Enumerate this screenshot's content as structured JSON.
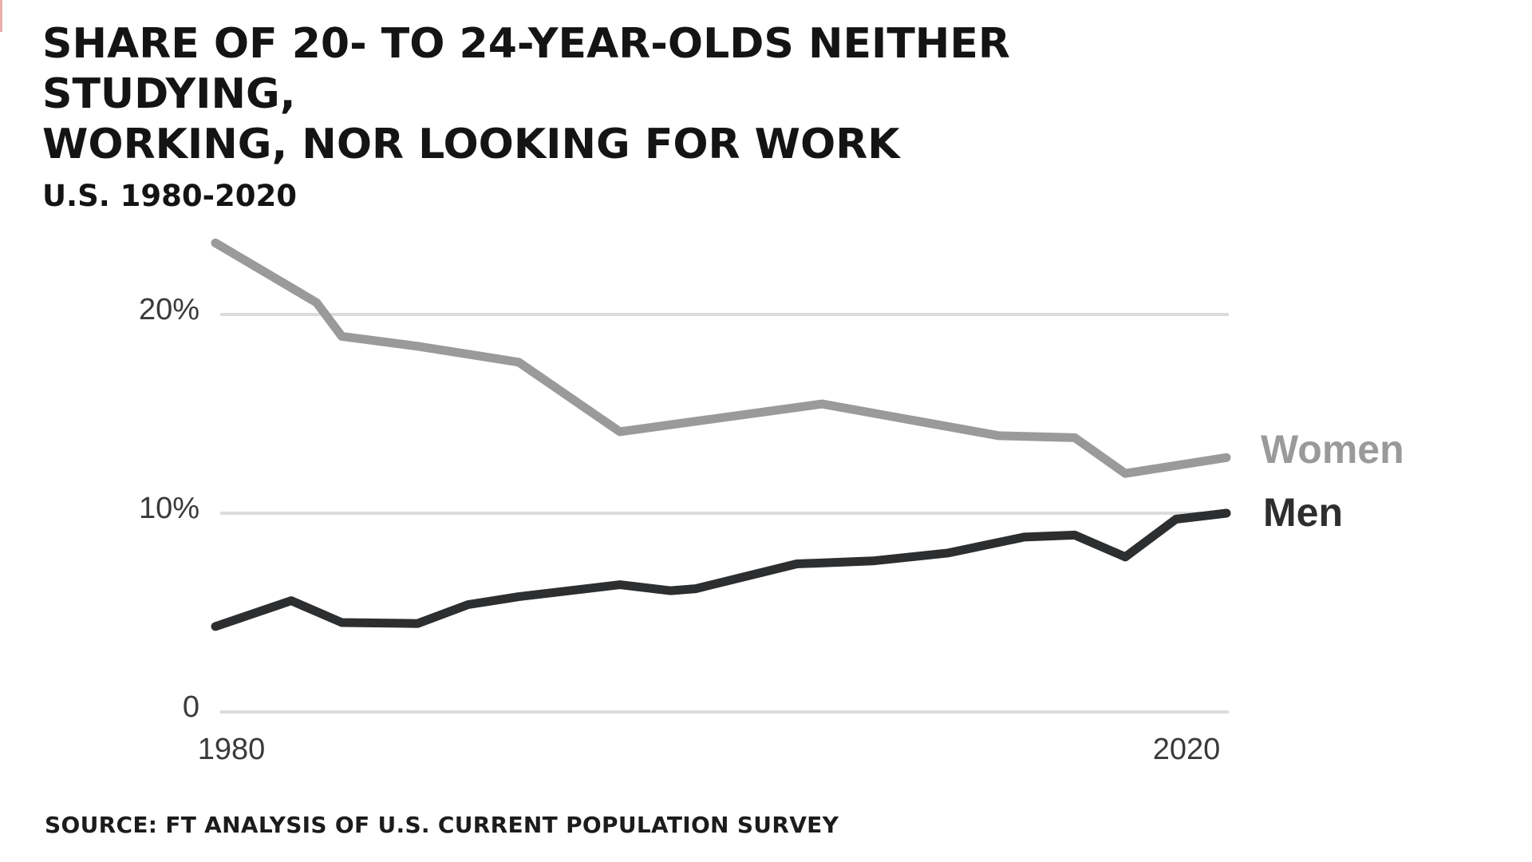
{
  "header": {
    "title_line1": "SHARE OF 20- TO 24-YEAR-OLDS NEITHER STUDYING,",
    "title_line2": "WORKING, NOR LOOKING FOR WORK",
    "subtitle": "U.S. 1980-2020"
  },
  "footer": {
    "source": "SOURCE: FT ANALYSIS OF U.S. CURRENT POPULATION SURVEY"
  },
  "chart_data": {
    "type": "line",
    "title": "SHARE OF 20- TO 24-YEAR-OLDS NEITHER STUDYING, WORKING, NOR LOOKING FOR WORK",
    "subtitle": "U.S. 1980-2020",
    "xlabel": "",
    "ylabel": "",
    "x_range": [
      1980,
      2020
    ],
    "ylim": [
      0,
      25
    ],
    "grid": "horizontal",
    "grid_color": "#dcdcdc",
    "background_color": "#ffffff",
    "legend_position": "right-of-line-ends",
    "yticks": [
      {
        "value": 20,
        "label": "20%"
      },
      {
        "value": 10,
        "label": "10%"
      },
      {
        "value": 0,
        "label": "0"
      }
    ],
    "xticks": [
      {
        "value": 1980,
        "label": "1980"
      },
      {
        "value": 2020,
        "label": "2020"
      }
    ],
    "series": [
      {
        "name": "Women",
        "color": "#9a9a9a",
        "points": [
          [
            1980,
            23.6
          ],
          [
            1984,
            20.6
          ],
          [
            1985,
            18.9
          ],
          [
            1988,
            18.4
          ],
          [
            1992,
            17.6
          ],
          [
            1996,
            14.1
          ],
          [
            2004,
            15.5
          ],
          [
            2011,
            13.9
          ],
          [
            2014,
            13.8
          ],
          [
            2016,
            12.0
          ],
          [
            2020,
            12.8
          ]
        ]
      },
      {
        "name": "Men",
        "color": "#2d2e30",
        "points": [
          [
            1980,
            4.3
          ],
          [
            1983,
            5.6
          ],
          [
            1985,
            4.5
          ],
          [
            1988,
            4.45
          ],
          [
            1990,
            5.4
          ],
          [
            1992,
            5.8
          ],
          [
            1996,
            6.4
          ],
          [
            1998,
            6.1
          ],
          [
            1999,
            6.2
          ],
          [
            2003,
            7.45
          ],
          [
            2006,
            7.6
          ],
          [
            2009,
            8.0
          ],
          [
            2012,
            8.8
          ],
          [
            2014,
            8.9
          ],
          [
            2016,
            7.8
          ],
          [
            2018,
            9.7
          ],
          [
            2020,
            10.0
          ]
        ]
      }
    ]
  }
}
